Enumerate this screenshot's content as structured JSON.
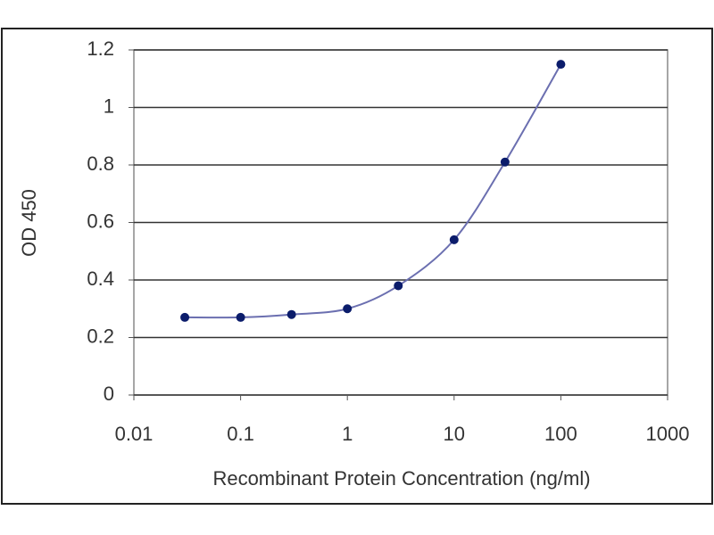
{
  "chart_data": {
    "type": "line",
    "xscale": "log",
    "x": [
      0.03,
      0.1,
      0.3,
      1,
      3,
      10,
      30,
      100
    ],
    "series": [
      {
        "color": "#0b1c6b",
        "line_color": "#6b6fb0",
        "values": [
          0.27,
          0.27,
          0.28,
          0.3,
          0.38,
          0.54,
          0.81,
          1.15
        ]
      }
    ],
    "xlim": [
      0.01,
      1000
    ],
    "xticks": [
      0.01,
      0.1,
      1,
      10,
      100,
      1000
    ],
    "ylim": [
      0,
      1.2
    ],
    "yticks": [
      0,
      0.2,
      0.4,
      0.6,
      0.8,
      1,
      1.2
    ],
    "xlabel": "Recombinant Protein Concentration (ng/ml)",
    "ylabel": "OD 450",
    "grid": true
  }
}
